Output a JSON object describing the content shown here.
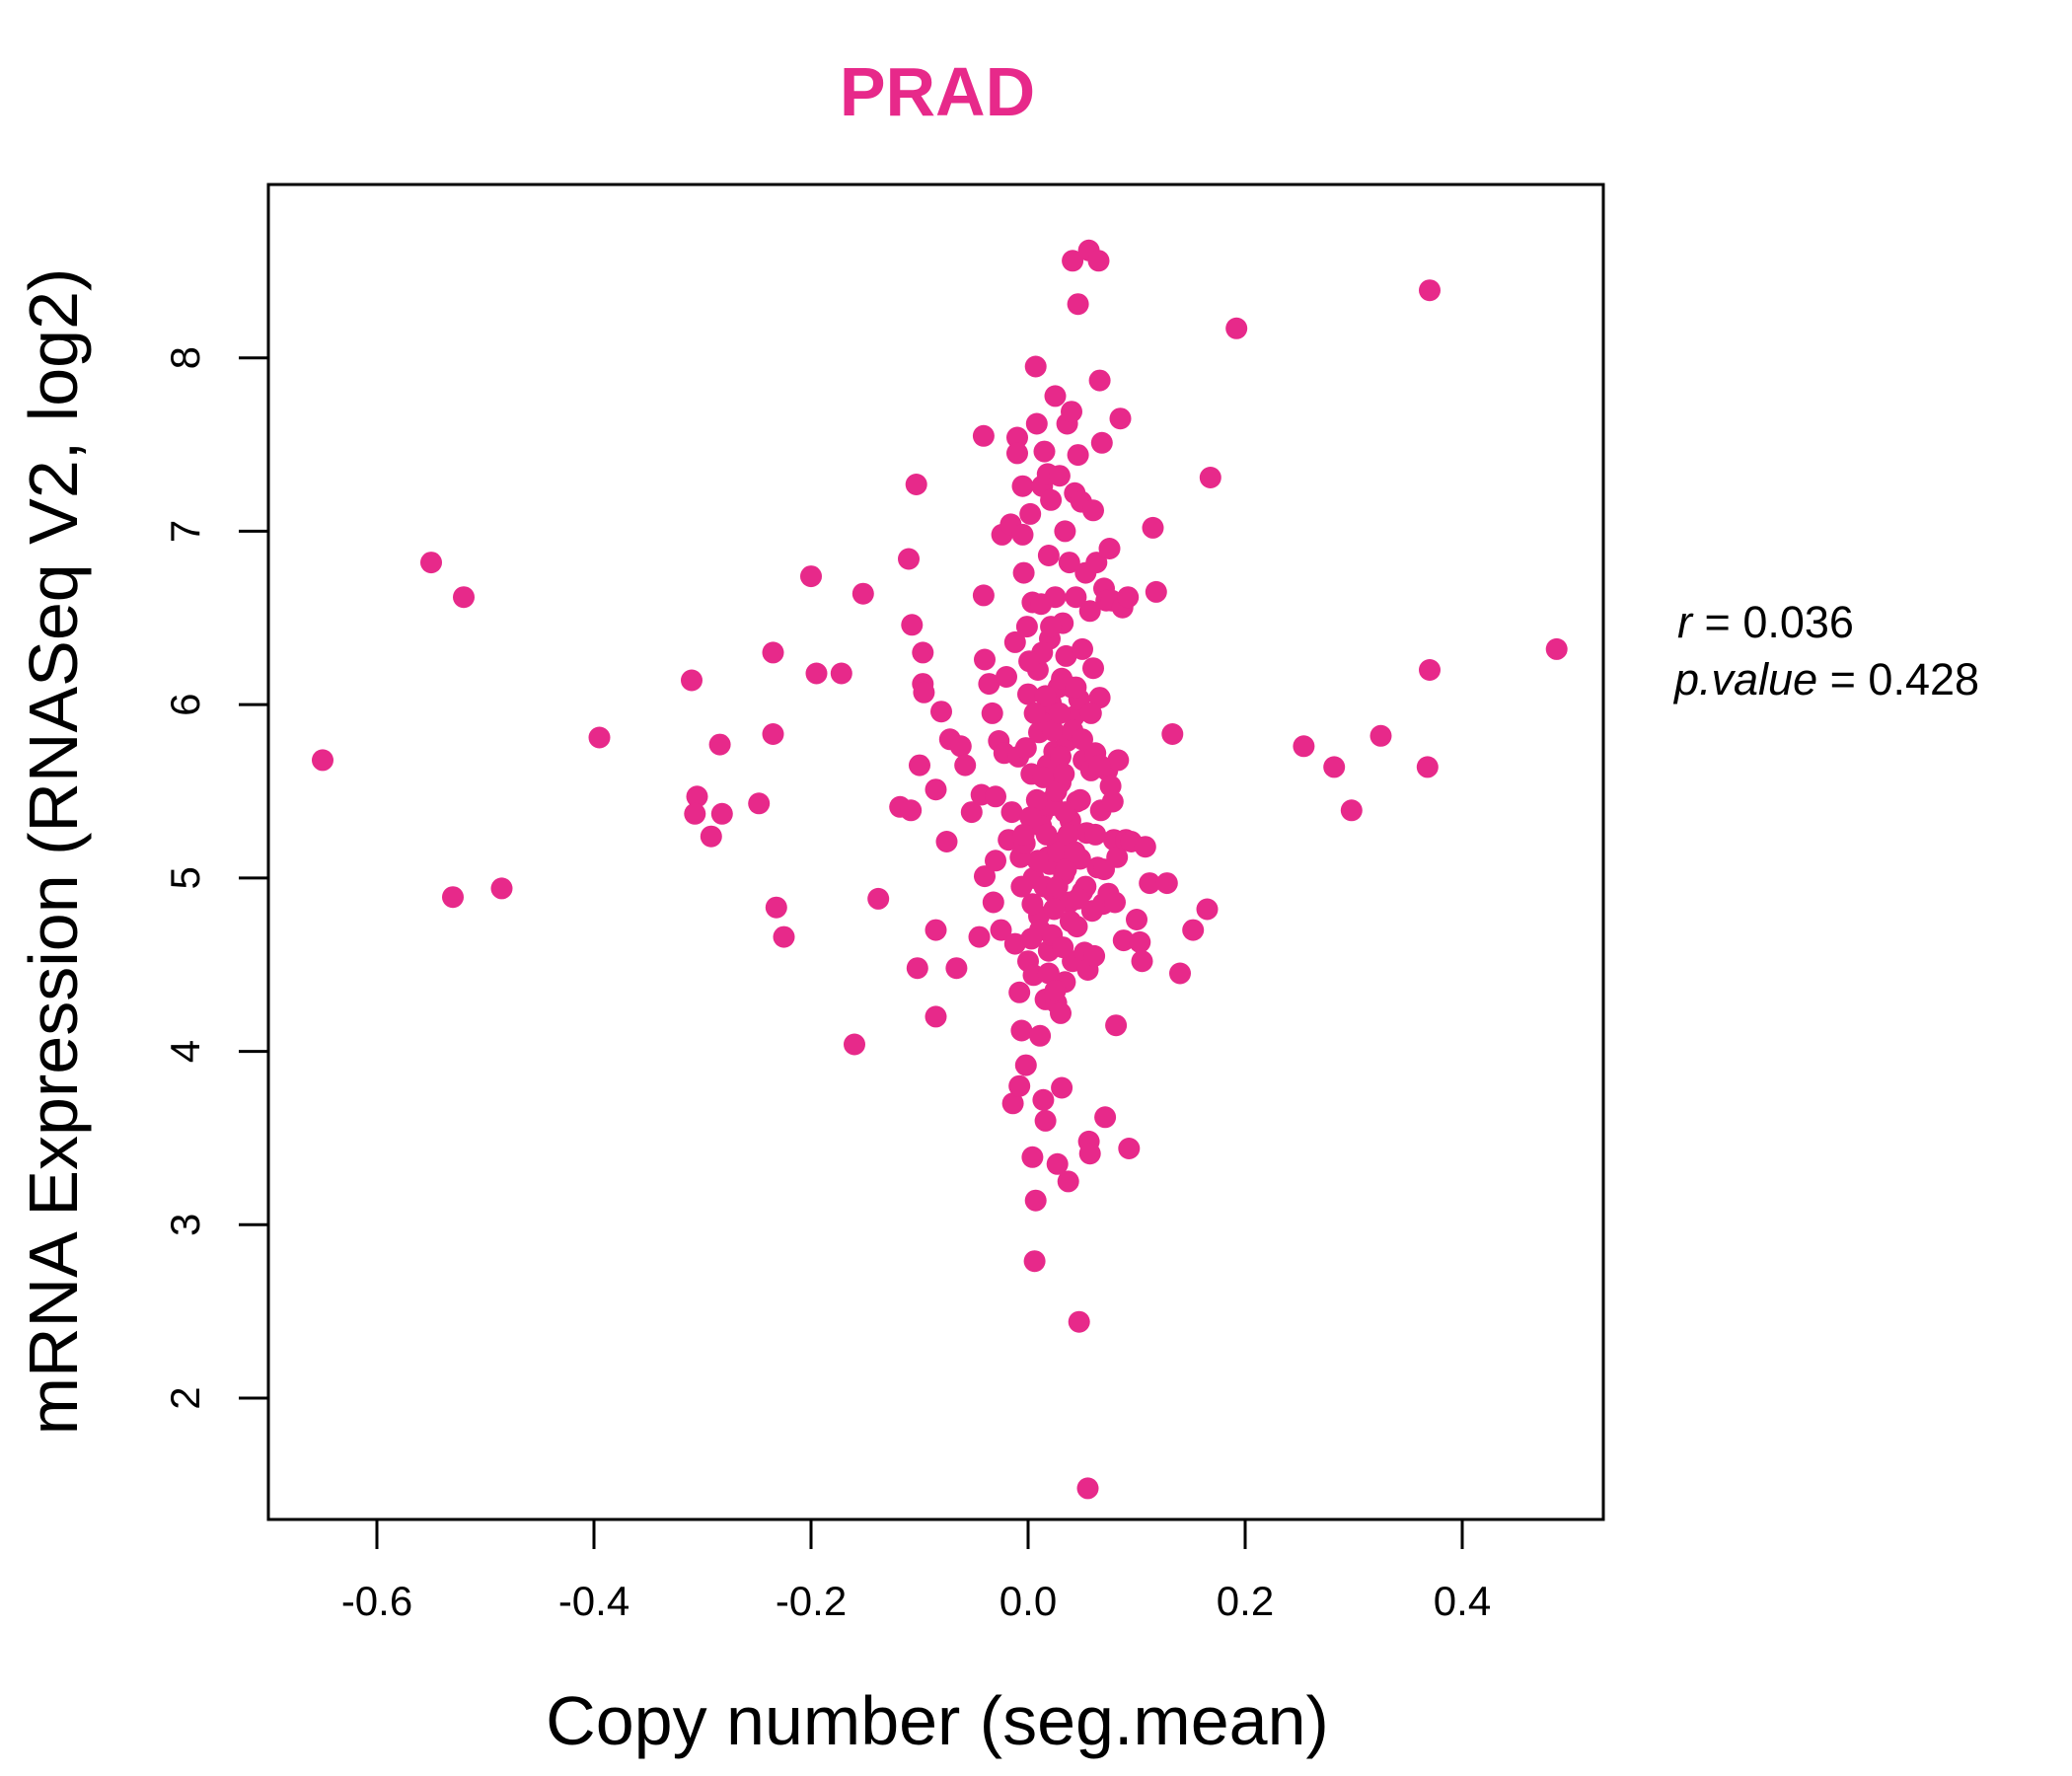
{
  "chart_data": {
    "type": "scatter",
    "title": "PRAD",
    "xlabel": "Copy number (seg.mean)",
    "ylabel": "mRNA Expression (RNASeq V2, log2)",
    "xlim": [
      -0.7,
      0.53
    ],
    "ylim": [
      1.3,
      9.0
    ],
    "x_ticks": [
      -0.6,
      -0.4,
      -0.2,
      0.0,
      0.2,
      0.4
    ],
    "x_tick_labels": [
      "-0.6",
      "-0.4",
      "-0.2",
      "0.0",
      "0.2",
      "0.4"
    ],
    "y_ticks": [
      2,
      3,
      4,
      5,
      6,
      7,
      8
    ],
    "y_tick_labels": [
      "2",
      "3",
      "4",
      "5",
      "6",
      "7",
      "8"
    ],
    "grid": false,
    "point_color": "#E7298A",
    "stats": {
      "r_label": "r",
      "r_value": "0.036",
      "p_label": "p.value",
      "p_value": "0.428"
    },
    "series": [
      {
        "points": [
          [
            -0.65,
            5.68
          ],
          [
            -0.55,
            6.82
          ],
          [
            -0.53,
            4.89
          ],
          [
            -0.52,
            6.62
          ],
          [
            -0.485,
            4.94
          ],
          [
            -0.395,
            5.81
          ],
          [
            -0.31,
            6.14
          ],
          [
            -0.305,
            5.47
          ],
          [
            -0.307,
            5.37
          ],
          [
            -0.292,
            5.24
          ],
          [
            -0.284,
            5.77
          ],
          [
            -0.282,
            5.37
          ],
          [
            -0.248,
            5.43
          ],
          [
            -0.235,
            6.3
          ],
          [
            -0.235,
            5.83
          ],
          [
            -0.232,
            4.83
          ],
          [
            -0.225,
            4.66
          ],
          [
            -0.2,
            6.74
          ],
          [
            -0.195,
            6.18
          ],
          [
            -0.172,
            6.18
          ],
          [
            -0.16,
            4.04
          ],
          [
            -0.152,
            6.64
          ],
          [
            -0.138,
            4.88
          ],
          [
            -0.118,
            5.41
          ],
          [
            -0.11,
            6.84
          ],
          [
            -0.108,
            5.39
          ],
          [
            -0.107,
            6.46
          ],
          [
            -0.103,
            7.27
          ],
          [
            -0.102,
            4.48
          ],
          [
            -0.1,
            5.65
          ],
          [
            -0.097,
            6.3
          ],
          [
            -0.097,
            6.12
          ],
          [
            -0.096,
            6.07
          ],
          [
            -0.085,
            5.51
          ],
          [
            -0.085,
            4.7
          ],
          [
            -0.085,
            4.2
          ],
          [
            -0.08,
            5.96
          ],
          [
            -0.075,
            5.21
          ],
          [
            -0.072,
            5.8
          ],
          [
            -0.066,
            4.48
          ],
          [
            -0.062,
            5.76
          ],
          [
            -0.058,
            5.65
          ],
          [
            -0.052,
            5.38
          ],
          [
            -0.045,
            4.66
          ],
          [
            -0.043,
            5.48
          ],
          [
            -0.041,
            7.55
          ],
          [
            -0.041,
            6.63
          ],
          [
            -0.04,
            6.26
          ],
          [
            -0.04,
            5.01
          ],
          [
            -0.036,
            6.12
          ],
          [
            -0.033,
            5.95
          ],
          [
            -0.032,
            4.86
          ],
          [
            -0.03,
            5.1
          ],
          [
            -0.03,
            5.47
          ],
          [
            -0.027,
            5.79
          ],
          [
            -0.025,
            4.7
          ],
          [
            -0.024,
            6.98
          ],
          [
            -0.022,
            5.72
          ],
          [
            -0.02,
            6.16
          ],
          [
            -0.018,
            5.22
          ],
          [
            -0.016,
            7.04
          ],
          [
            -0.015,
            5.38
          ],
          [
            -0.014,
            3.7
          ],
          [
            -0.012,
            6.36
          ],
          [
            -0.012,
            4.62
          ],
          [
            -0.01,
            7.54
          ],
          [
            -0.01,
            7.45
          ],
          [
            -0.009,
            5.7
          ],
          [
            -0.008,
            3.8
          ],
          [
            -0.008,
            4.34
          ],
          [
            -0.007,
            5.12
          ],
          [
            -0.006,
            4.12
          ],
          [
            -0.005,
            7.26
          ],
          [
            -0.005,
            6.98
          ],
          [
            -0.004,
            6.76
          ],
          [
            -0.003,
            5.2
          ],
          [
            -0.002,
            3.92
          ],
          [
            -0.001,
            6.45
          ],
          [
            0.0,
            6.06
          ],
          [
            0.0,
            4.52
          ],
          [
            0.002,
            7.1
          ],
          [
            0.003,
            5.6
          ],
          [
            0.004,
            6.59
          ],
          [
            0.004,
            3.39
          ],
          [
            0.005,
            4.44
          ],
          [
            0.005,
            5.0
          ],
          [
            0.006,
            2.79
          ],
          [
            0.007,
            7.95
          ],
          [
            0.007,
            3.14
          ],
          [
            0.008,
            7.62
          ],
          [
            0.009,
            6.2
          ],
          [
            0.01,
            5.84
          ],
          [
            0.01,
            4.78
          ],
          [
            0.011,
            4.09
          ],
          [
            0.012,
            6.58
          ],
          [
            0.013,
            7.26
          ],
          [
            0.013,
            5.37
          ],
          [
            0.014,
            3.72
          ],
          [
            0.015,
            7.46
          ],
          [
            0.016,
            4.3
          ],
          [
            0.016,
            3.6
          ],
          [
            0.017,
            5.9
          ],
          [
            0.018,
            7.33
          ],
          [
            0.018,
            5.12
          ],
          [
            0.019,
            6.86
          ],
          [
            0.019,
            4.58
          ],
          [
            0.02,
            6.38
          ],
          [
            0.021,
            7.18
          ],
          [
            0.021,
            6.01
          ],
          [
            0.022,
            5.45
          ],
          [
            0.022,
            4.67
          ],
          [
            0.023,
            4.92
          ],
          [
            0.024,
            5.73
          ],
          [
            0.025,
            6.62
          ],
          [
            0.025,
            7.78
          ],
          [
            0.026,
            4.28
          ],
          [
            0.027,
            5.2
          ],
          [
            0.027,
            3.35
          ],
          [
            0.028,
            6.1
          ],
          [
            0.029,
            7.32
          ],
          [
            0.03,
            5.55
          ],
          [
            0.03,
            4.22
          ],
          [
            0.031,
            3.79
          ],
          [
            0.032,
            6.47
          ],
          [
            0.033,
            5.02
          ],
          [
            0.034,
            7.0
          ],
          [
            0.034,
            4.4
          ],
          [
            0.035,
            6.28
          ],
          [
            0.036,
            5.79
          ],
          [
            0.036,
            7.62
          ],
          [
            0.037,
            3.25
          ],
          [
            0.038,
            6.82
          ],
          [
            0.038,
            4.86
          ],
          [
            0.039,
            5.33
          ],
          [
            0.04,
            7.69
          ],
          [
            0.04,
            6.1
          ],
          [
            0.041,
            8.56
          ],
          [
            0.041,
            4.52
          ],
          [
            0.042,
            5.93
          ],
          [
            0.043,
            7.22
          ],
          [
            0.044,
            6.62
          ],
          [
            0.045,
            5.44
          ],
          [
            0.045,
            4.72
          ],
          [
            0.046,
            8.31
          ],
          [
            0.046,
            7.44
          ],
          [
            0.047,
            6.03
          ],
          [
            0.047,
            2.44
          ],
          [
            0.048,
            5.11
          ],
          [
            0.049,
            7.17
          ],
          [
            0.05,
            6.32
          ],
          [
            0.05,
            4.92
          ],
          [
            0.051,
            5.68
          ],
          [
            0.052,
            4.57
          ],
          [
            0.053,
            6.76
          ],
          [
            0.054,
            5.26
          ],
          [
            0.055,
            1.48
          ],
          [
            0.055,
            4.47
          ],
          [
            0.056,
            8.62
          ],
          [
            0.056,
            3.48
          ],
          [
            0.057,
            6.54
          ],
          [
            0.057,
            3.41
          ],
          [
            0.058,
            5.62
          ],
          [
            0.059,
            4.81
          ],
          [
            0.06,
            7.12
          ],
          [
            0.06,
            6.21
          ],
          [
            0.061,
            4.55
          ],
          [
            0.062,
            5.72
          ],
          [
            0.063,
            6.82
          ],
          [
            0.064,
            5.06
          ],
          [
            0.065,
            8.56
          ],
          [
            0.066,
            7.87
          ],
          [
            0.066,
            6.04
          ],
          [
            0.067,
            5.39
          ],
          [
            0.068,
            7.51
          ],
          [
            0.069,
            4.85
          ],
          [
            0.07,
            6.67
          ],
          [
            0.071,
            3.62
          ],
          [
            0.072,
            6.6
          ],
          [
            0.073,
            5.62
          ],
          [
            0.074,
            4.91
          ],
          [
            0.075,
            6.9
          ],
          [
            0.076,
            5.53
          ],
          [
            0.077,
            6.6
          ],
          [
            0.078,
            5.44
          ],
          [
            0.079,
            5.22
          ],
          [
            0.08,
            4.86
          ],
          [
            0.081,
            4.15
          ],
          [
            0.082,
            5.12
          ],
          [
            0.083,
            5.68
          ],
          [
            0.085,
            7.65
          ],
          [
            0.087,
            6.56
          ],
          [
            0.088,
            4.64
          ],
          [
            0.09,
            5.22
          ],
          [
            0.092,
            6.62
          ],
          [
            0.093,
            3.44
          ],
          [
            0.095,
            5.21
          ],
          [
            0.1,
            4.76
          ],
          [
            0.103,
            4.63
          ],
          [
            0.105,
            4.52
          ],
          [
            0.108,
            5.18
          ],
          [
            0.112,
            4.97
          ],
          [
            0.115,
            7.02
          ],
          [
            0.118,
            6.65
          ],
          [
            0.128,
            4.97
          ],
          [
            0.133,
            5.83
          ],
          [
            0.14,
            4.45
          ],
          [
            0.152,
            4.7
          ],
          [
            0.165,
            4.82
          ],
          [
            0.168,
            7.31
          ],
          [
            0.192,
            8.17
          ],
          [
            0.254,
            5.76
          ],
          [
            0.282,
            5.64
          ],
          [
            0.298,
            5.39
          ],
          [
            0.325,
            5.82
          ],
          [
            0.368,
            5.64
          ],
          [
            0.37,
            8.39
          ],
          [
            0.37,
            6.2
          ],
          [
            0.487,
            6.32
          ],
          [
            0.012,
            5.3
          ],
          [
            0.015,
            4.95
          ],
          [
            0.018,
            5.65
          ],
          [
            0.02,
            5.08
          ],
          [
            0.022,
            5.42
          ],
          [
            0.024,
            4.82
          ],
          [
            0.026,
            5.5
          ],
          [
            0.028,
            5.15
          ],
          [
            0.03,
            5.7
          ],
          [
            0.032,
            4.6
          ],
          [
            0.034,
            5.38
          ],
          [
            0.014,
            5.58
          ],
          [
            0.016,
            6.05
          ],
          [
            0.019,
            4.45
          ],
          [
            0.023,
            5.85
          ],
          [
            0.027,
            4.95
          ],
          [
            0.031,
            6.15
          ],
          [
            0.035,
            5.05
          ],
          [
            0.008,
            5.45
          ],
          [
            0.011,
            4.7
          ],
          [
            0.013,
            6.3
          ],
          [
            0.017,
            5.25
          ],
          [
            0.021,
            6.45
          ],
          [
            0.025,
            4.35
          ],
          [
            0.029,
            5.95
          ],
          [
            0.033,
            5.6
          ],
          [
            0.037,
            5.25
          ],
          [
            0.039,
            4.75
          ],
          [
            0.041,
            5.85
          ],
          [
            0.043,
            5.15
          ],
          [
            0.006,
            5.95
          ],
          [
            0.009,
            5.1
          ],
          [
            0.002,
            5.35
          ],
          [
            0.004,
            4.85
          ],
          [
            0.044,
            6.1
          ],
          [
            0.048,
            5.45
          ],
          [
            0.05,
            5.8
          ],
          [
            0.053,
            4.95
          ],
          [
            0.058,
            5.95
          ],
          [
            0.062,
            5.25
          ],
          [
            0.066,
            5.65
          ],
          [
            0.07,
            5.05
          ],
          [
            -0.002,
            5.75
          ],
          [
            -0.004,
            5.25
          ],
          [
            -0.006,
            4.95
          ],
          [
            0.001,
            6.25
          ],
          [
            0.003,
            4.65
          ],
          [
            0.046,
            4.88
          ]
        ]
      }
    ]
  }
}
